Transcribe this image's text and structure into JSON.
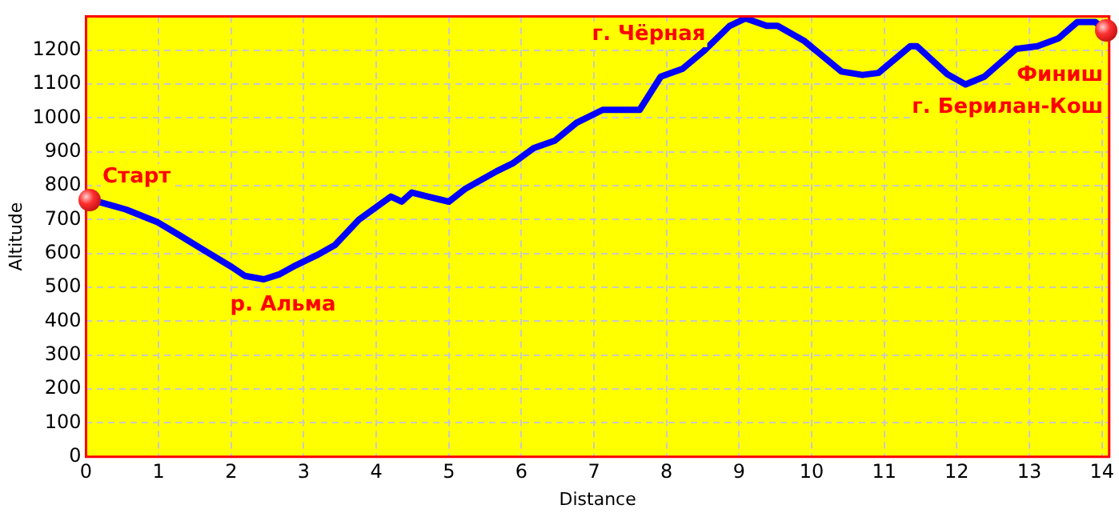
{
  "chart_data": {
    "type": "line",
    "xlabel": "Distance",
    "ylabel": "Altitude",
    "xlim": [
      0,
      14.1
    ],
    "ylim": [
      0,
      1300
    ],
    "xticks": [
      0,
      1,
      2,
      3,
      4,
      5,
      6,
      7,
      8,
      9,
      10,
      11,
      12,
      13,
      14
    ],
    "yticks": [
      0,
      100,
      200,
      300,
      400,
      500,
      600,
      700,
      800,
      900,
      1000,
      1100,
      1200
    ],
    "grid": true,
    "marker": "none",
    "line_style": "solid",
    "legend": false,
    "series": [
      {
        "color": "#0000ff",
        "x": [
          0.05,
          0.3,
          0.55,
          0.99,
          1.28,
          1.57,
          2.01,
          2.19,
          2.45,
          2.67,
          2.89,
          3.18,
          3.43,
          3.76,
          4.2,
          4.35,
          4.49,
          4.71,
          5.0,
          5.22,
          5.66,
          5.88,
          6.17,
          6.46,
          6.76,
          7.12,
          7.63,
          7.92,
          8.22,
          8.51,
          8.87,
          9.09,
          9.38,
          9.53,
          9.9,
          10.41,
          10.7,
          10.92,
          11.36,
          11.45,
          11.87,
          12.12,
          12.38,
          12.82,
          13.11,
          13.4,
          13.66,
          13.91,
          14.06
        ],
        "values": [
          760,
          745,
          730,
          692,
          655,
          617,
          560,
          534,
          524,
          539,
          565,
          595,
          625,
          700,
          768,
          753,
          780,
          768,
          753,
          790,
          843,
          866,
          911,
          933,
          986,
          1024,
          1024,
          1122,
          1145,
          1197,
          1272,
          1294,
          1272,
          1272,
          1227,
          1137,
          1127,
          1133,
          1212,
          1212,
          1129,
          1099,
          1122,
          1204,
          1212,
          1235,
          1283,
          1283,
          1257
        ]
      }
    ],
    "annotations": [
      {
        "text": "Старт",
        "x": 0.05,
        "y": 760
      },
      {
        "text": "р. Альма",
        "x": 2.45,
        "y": 524
      },
      {
        "text": "г. Чёрная",
        "x": 9.09,
        "y": 1294
      },
      "Финиш",
      "г. Берилан-Кош"
    ]
  }
}
